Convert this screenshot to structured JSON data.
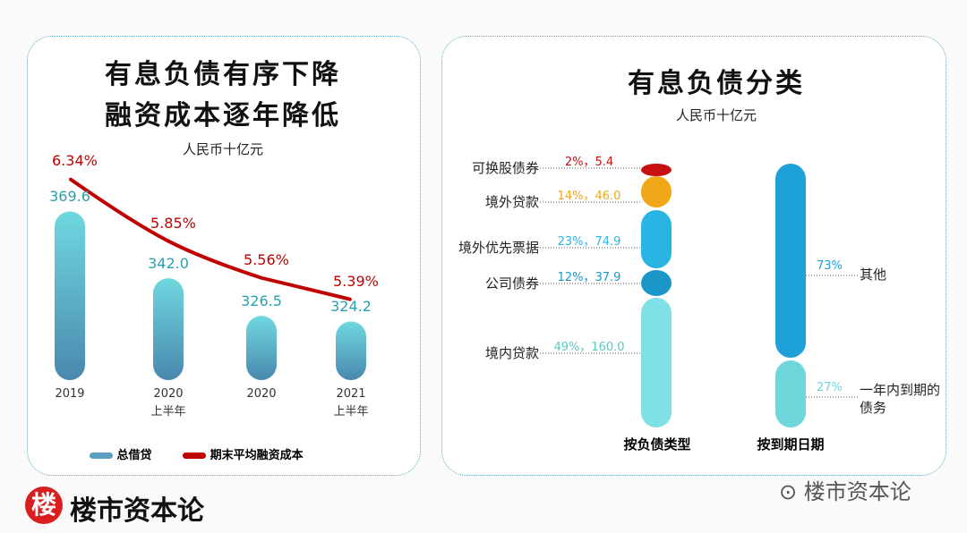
{
  "chart_data": [
    {
      "type": "bar+line",
      "title": [
        "有息负债有序下降",
        "融资成本逐年降低"
      ],
      "subtitle": "人民币十亿元",
      "categories": [
        [
          "2019",
          ""
        ],
        [
          "2020",
          "上半年"
        ],
        [
          "2020",
          ""
        ],
        [
          "2021",
          "上半年"
        ]
      ],
      "series": [
        {
          "name": "总借贷",
          "type": "bar",
          "values": [
            369.6,
            342.0,
            326.5,
            324.2
          ],
          "labels": [
            "369.6",
            "342.0",
            "326.5",
            "324.2"
          ],
          "color": "#4a90b0"
        },
        {
          "name": "期末平均融资成本",
          "type": "line",
          "values": [
            6.34,
            5.85,
            5.56,
            5.39
          ],
          "labels": [
            "6.34%",
            "5.85%",
            "5.56%",
            "5.39%"
          ],
          "color": "#c00000"
        }
      ],
      "legend": "bottom"
    },
    {
      "type": "stacked-bar",
      "title": "有息负债分类",
      "subtitle": "人民币十亿元",
      "bars": [
        {
          "name": "按负债类型",
          "segments": [
            {
              "label": "境内贷款",
              "pct": 49,
              "value": 160.0,
              "text": "49%，160.0",
              "color": "#7fe0e6"
            },
            {
              "label": "公司债券",
              "pct": 12,
              "value": 37.9,
              "text": "12%，37.9",
              "color": "#1b96c8"
            },
            {
              "label": "境外优先票据",
              "pct": 23,
              "value": 74.9,
              "text": "23%，74.9",
              "color": "#2ab4e4"
            },
            {
              "label": "境外贷款",
              "pct": 14,
              "value": 46.0,
              "text": "14%，46.0",
              "color": "#f0a818"
            },
            {
              "label": "可换股债券",
              "pct": 2,
              "value": 5.4,
              "text": "2%，5.4",
              "color": "#c81010"
            }
          ]
        },
        {
          "name": "按到期日期",
          "segments": [
            {
              "label": "一年内到期的债务",
              "pct": 27,
              "text": "27%",
              "color": "#6fd6dc"
            },
            {
              "label": "其他",
              "pct": 73,
              "text": "73%",
              "color": "#1ea0d8"
            }
          ]
        }
      ]
    }
  ],
  "brand": {
    "logo_char": "楼",
    "name": "楼市资本论",
    "watermark": "楼市资本论"
  }
}
